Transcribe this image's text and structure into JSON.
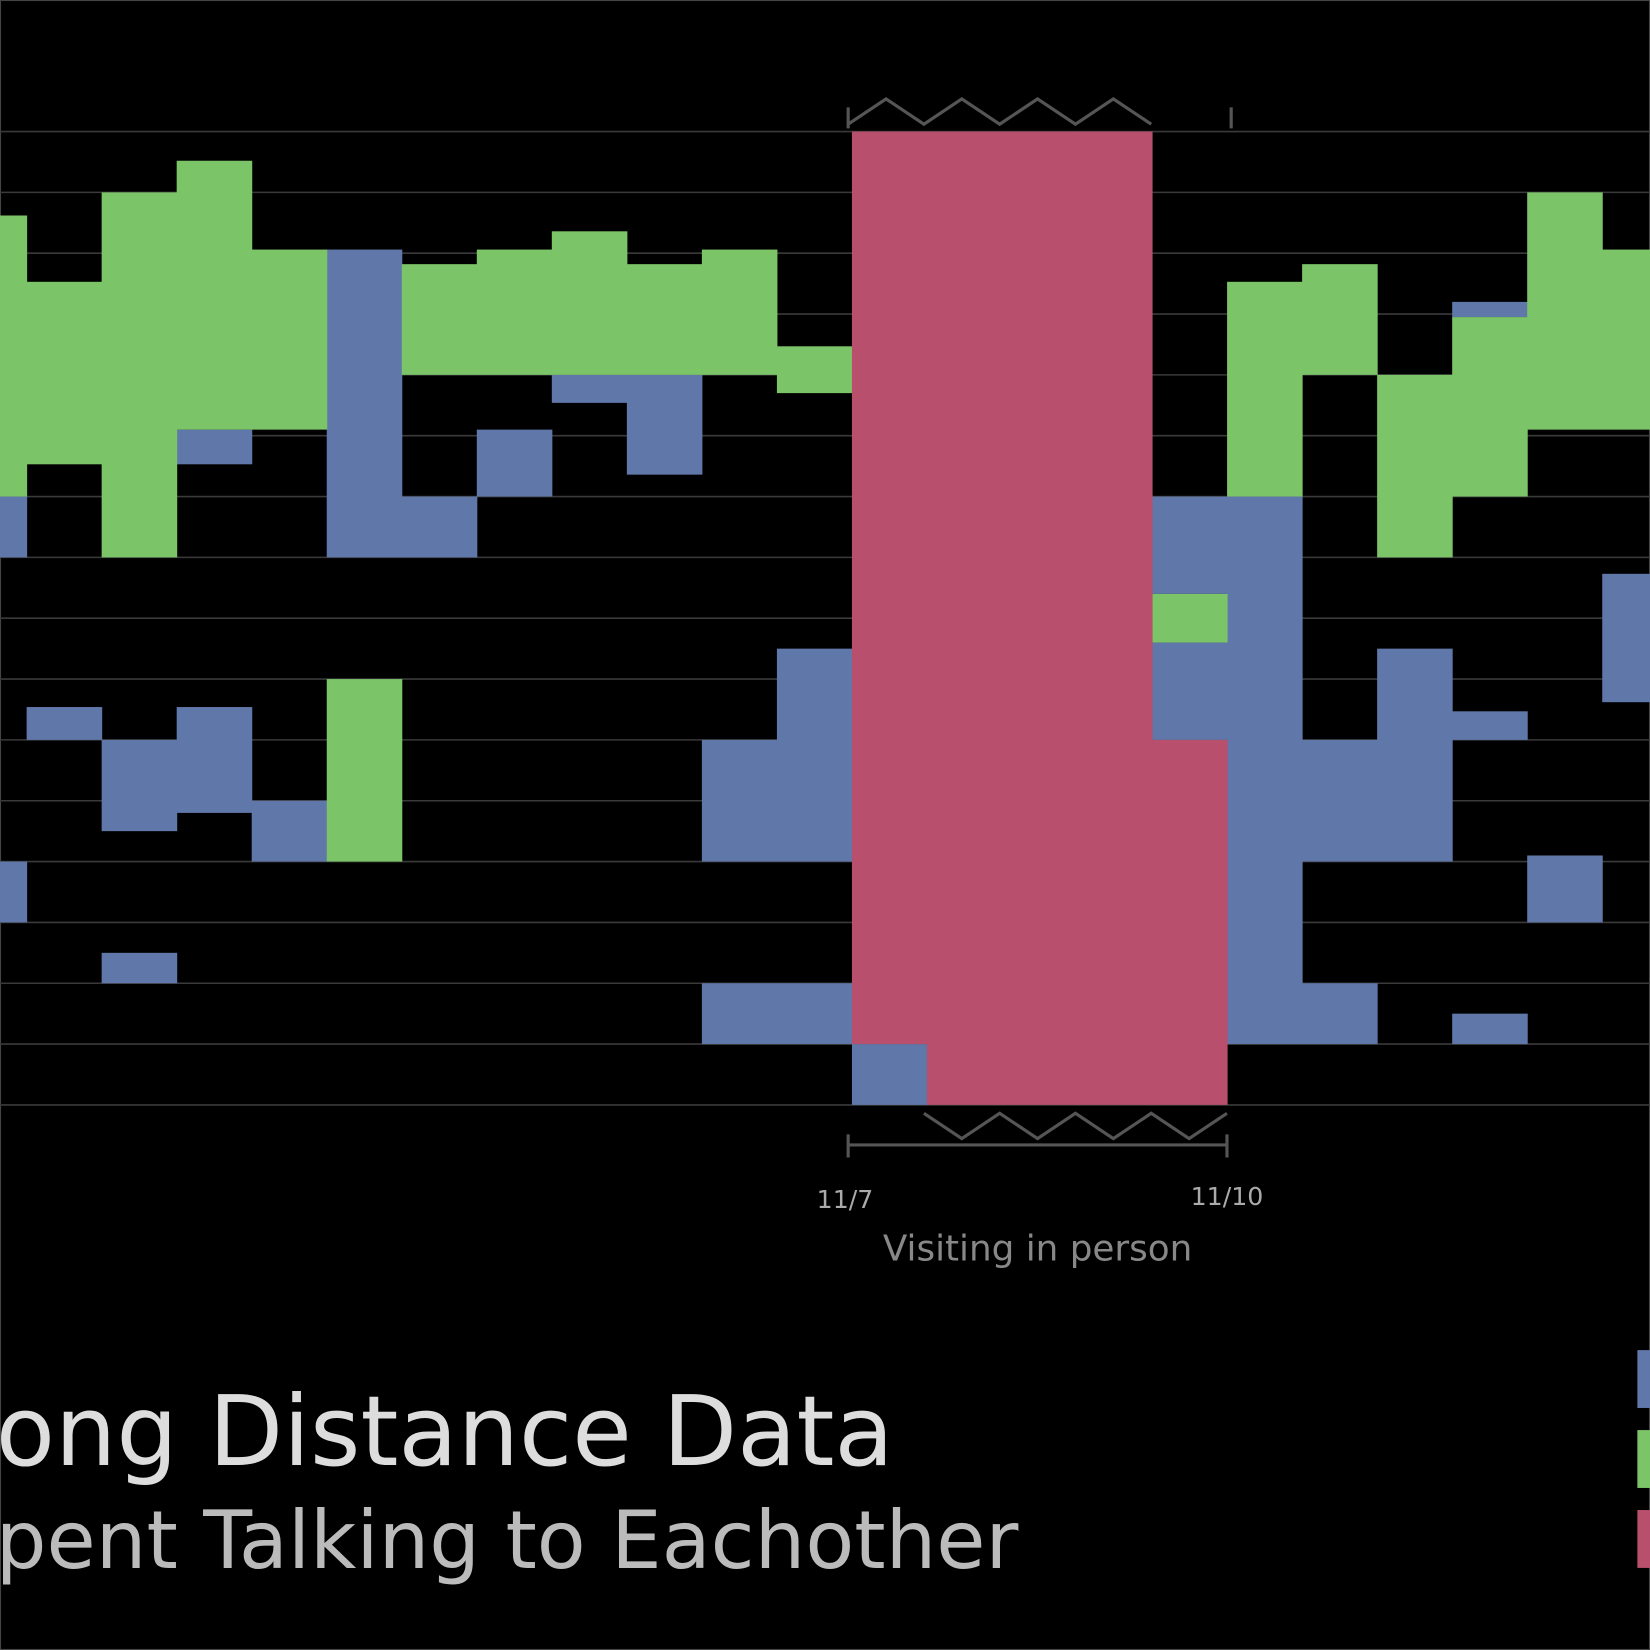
{
  "chart_data": {
    "type": "timeline",
    "title": "ong Distance Data",
    "subtitle": "pent Talking to Eachother",
    "annotation": "Visiting in person",
    "annotation_start": "11/7",
    "annotation_end": "11/10",
    "ylim": [
      0,
      16
    ],
    "yticks": [
      0,
      1,
      2,
      3,
      4,
      5,
      6,
      7,
      8,
      9,
      10,
      11,
      12,
      13,
      14,
      15,
      16
    ],
    "grid": true,
    "series": [
      {
        "color": "#6077a9",
        "blocks": [
          [
            0,
            6,
            7
          ],
          [
            0,
            12,
            13
          ],
          [
            1,
            9.46,
            10
          ],
          [
            2,
            10,
            11.5
          ],
          [
            2,
            13.5,
            14
          ],
          [
            3,
            4.9,
            5.47
          ],
          [
            3,
            9.46,
            11.2
          ],
          [
            4,
            11,
            12
          ],
          [
            5,
            1.94,
            7
          ],
          [
            6,
            6,
            7
          ],
          [
            7,
            4.9,
            6
          ],
          [
            8,
            4,
            4.46
          ],
          [
            9,
            4,
            5.64
          ],
          [
            10,
            10,
            12
          ],
          [
            10,
            14,
            15
          ],
          [
            11,
            8.5,
            12
          ],
          [
            11,
            14,
            15
          ],
          [
            12,
            15,
            16
          ],
          [
            16,
            6,
            7.6
          ],
          [
            16,
            8.4,
            10
          ],
          [
            17,
            6,
            15
          ],
          [
            18,
            10,
            12
          ],
          [
            18,
            14,
            15
          ],
          [
            19,
            8.5,
            12
          ],
          [
            20,
            2.8,
            3.05
          ],
          [
            20,
            9.53,
            10
          ],
          [
            20,
            14.5,
            15
          ],
          [
            21,
            11.9,
            13
          ],
          [
            22,
            7.27,
            9.38
          ]
        ]
      },
      {
        "color": "#7bc468",
        "blocks": [
          [
            0,
            1.38,
            6
          ],
          [
            1,
            2.47,
            5.47
          ],
          [
            2,
            1,
            7
          ],
          [
            3,
            0.48,
            4.9
          ],
          [
            4,
            1.94,
            4.9
          ],
          [
            5,
            9,
            12
          ],
          [
            6,
            2.18,
            4
          ],
          [
            7,
            1.94,
            4
          ],
          [
            8,
            1.64,
            4
          ],
          [
            9,
            2.18,
            4
          ],
          [
            10,
            1.94,
            4
          ],
          [
            11,
            3.53,
            4.3
          ],
          [
            16,
            7.6,
            8.4
          ],
          [
            17,
            2.47,
            6
          ],
          [
            18,
            2.18,
            4
          ],
          [
            19,
            4,
            7
          ],
          [
            20,
            3.05,
            6
          ],
          [
            21,
            1,
            4.9
          ],
          [
            22,
            1.94,
            4.9
          ]
        ]
      },
      {
        "color": "#b84f6d",
        "blocks": [
          [
            12,
            0,
            15
          ],
          [
            13,
            0,
            16
          ],
          [
            14,
            0,
            16
          ],
          [
            15,
            0,
            16
          ],
          [
            16,
            10,
            16
          ]
        ]
      }
    ]
  }
}
